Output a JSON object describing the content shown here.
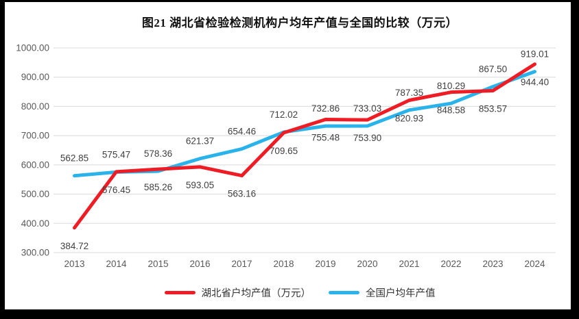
{
  "title": "图21 湖北省检验检测机构户均年产值与全国的比较（万元）",
  "chart_data": {
    "type": "line",
    "title": "图21 湖北省检验检测机构户均年产值与全国的比较（万元）",
    "categories": [
      "2013",
      "2014",
      "2015",
      "2016",
      "2017",
      "2018",
      "2019",
      "2020",
      "2021",
      "2022",
      "2023",
      "2024"
    ],
    "series": [
      {
        "name": "湖北省户均产值（万元）",
        "color": "#ee1c25",
        "label_position": "below",
        "values": [
          384.72,
          576.45,
          585.26,
          593.05,
          563.16,
          709.65,
          755.48,
          753.9,
          820.93,
          848.58,
          853.57,
          944.4
        ]
      },
      {
        "name": "全国户均年产值",
        "color": "#2ab3ea",
        "label_position": "above",
        "values": [
          562.85,
          575.47,
          578.36,
          621.37,
          654.46,
          712.02,
          732.86,
          733.03,
          787.35,
          810.29,
          867.5,
          919.01
        ]
      }
    ],
    "xlabel": "",
    "ylabel": "",
    "ylim": [
      300,
      1000
    ],
    "ytick_interval": 100,
    "ytick_labels": [
      "300.00",
      "400.00",
      "500.00",
      "600.00",
      "700.00",
      "800.00",
      "900.00",
      "1000.00"
    ],
    "grid": true,
    "legend_position": "bottom",
    "value_decimals": 2
  },
  "style": {
    "grid_color": "#d9d9d9",
    "tick_text_color": "#595959",
    "data_label_color": "#404040",
    "frame_color": "#000000",
    "background": "#ffffff",
    "hubei_color": "#ee1c25",
    "national_color": "#2ab3ea"
  }
}
